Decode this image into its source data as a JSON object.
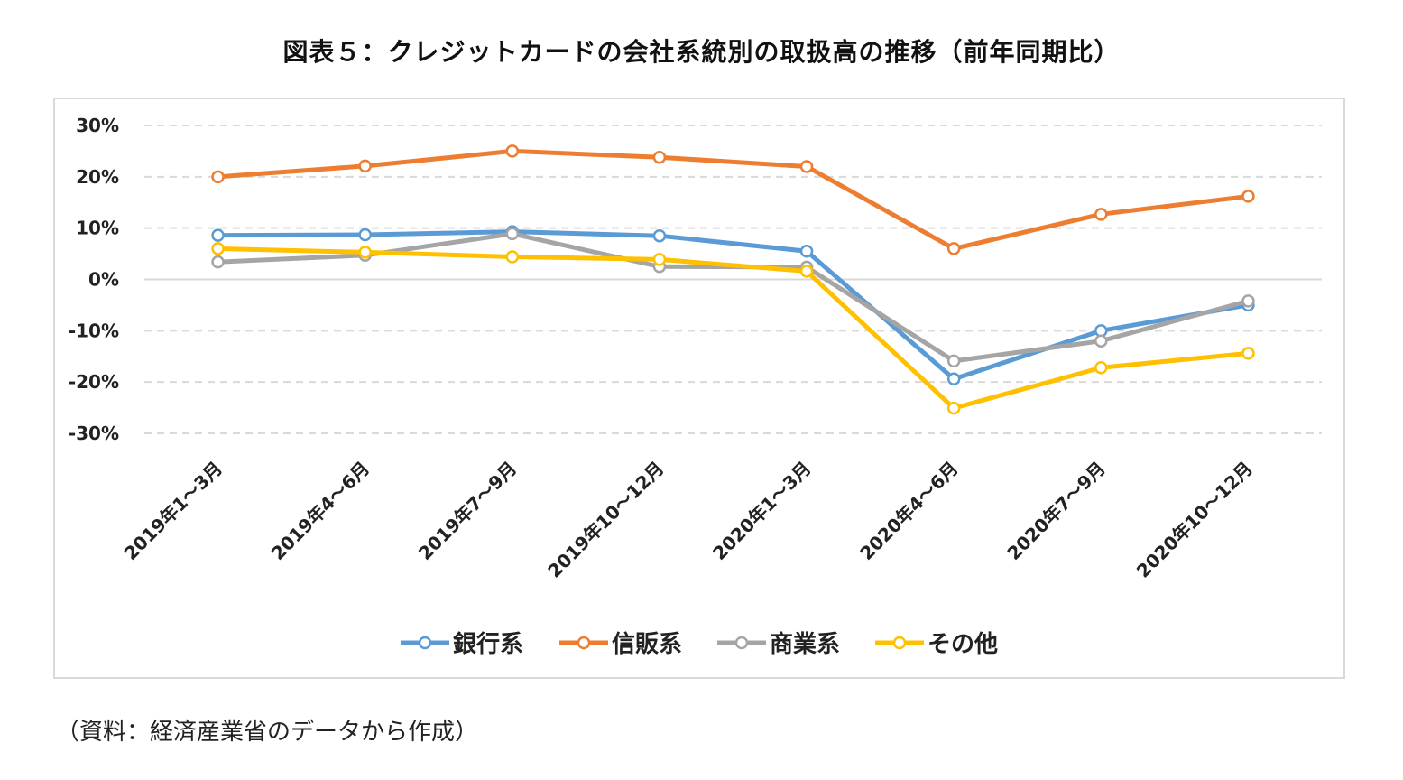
{
  "chart_data": {
    "type": "line",
    "title": "図表５：クレジットカードの会社系統別の取扱高の推移（前年同期比）",
    "xlabel": "",
    "ylabel": "",
    "categories": [
      "2019年1～3月",
      "2019年4～6月",
      "2019年7～9月",
      "2019年10～12月",
      "2020年1～3月",
      "2020年4～6月",
      "2020年7～9月",
      "2020年10～12月"
    ],
    "ylim": [
      -30,
      30
    ],
    "yticks": [
      30,
      20,
      10,
      0,
      -10,
      -20,
      -30
    ],
    "ytick_labels": [
      "30%",
      "20%",
      "10%",
      "0%",
      "-10%",
      "-20%",
      "-30%"
    ],
    "grid": true,
    "legend_position": "bottom",
    "series": [
      {
        "name": "銀行系",
        "color": "#5b9bd5",
        "values": [
          8.6,
          8.7,
          9.3,
          8.5,
          5.5,
          -19.4,
          -10.0,
          -5.0
        ]
      },
      {
        "name": "信販系",
        "color": "#ed7d31",
        "values": [
          20.0,
          22.1,
          25.0,
          23.8,
          22.0,
          6.0,
          12.7,
          16.2
        ]
      },
      {
        "name": "商業系",
        "color": "#a5a5a5",
        "values": [
          3.4,
          4.7,
          8.9,
          2.5,
          2.4,
          -15.9,
          -12.0,
          -4.2
        ]
      },
      {
        "name": "その他",
        "color": "#ffc000",
        "values": [
          6.0,
          5.3,
          4.4,
          3.9,
          1.6,
          -25.1,
          -17.2,
          -14.4
        ]
      }
    ]
  },
  "source": "（資料：経済産業省のデータから作成）"
}
